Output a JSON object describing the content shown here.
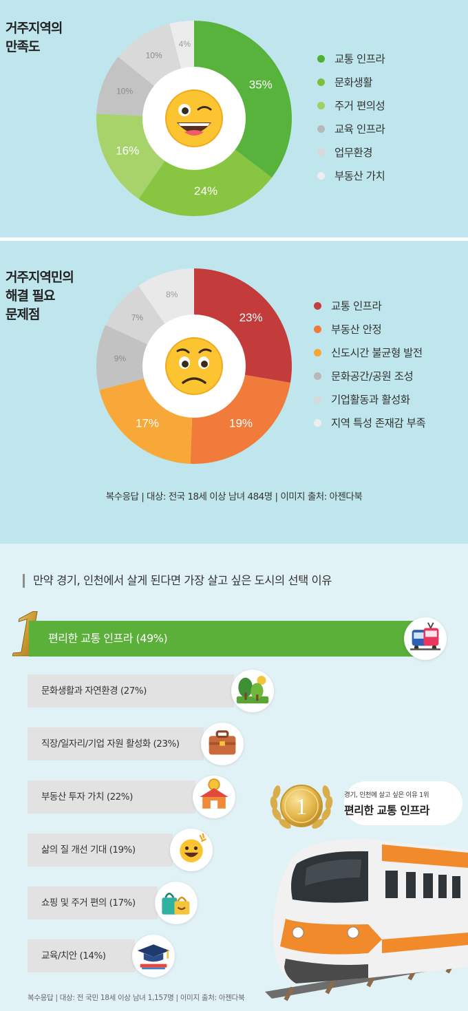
{
  "charts": [
    {
      "title": "거주지역의\n만족도",
      "chart_data": {
        "type": "pie",
        "title": "거주지역의 만족도",
        "categories": [
          "교통 인프라",
          "문화생활",
          "주거 편의성",
          "교육 인프라",
          "업무환경",
          "부동산 가치"
        ],
        "values": [
          35,
          24,
          16,
          10,
          10,
          4
        ],
        "value_labels": [
          "35%",
          "24%",
          "16%",
          "10%",
          "10%",
          "4%"
        ],
        "colors": [
          "#57b33c",
          "#88c540",
          "#a7d36a",
          "#c3c3c3",
          "#d9d9d9",
          "#ececec"
        ],
        "label_colors": [
          "#ffffff",
          "#ffffff",
          "#ffffff",
          "#8a8a8a",
          "#8a8a8a",
          "#9a9a9a"
        ],
        "legend_colors": [
          "#4db034",
          "#7cbf3a",
          "#9fd061",
          "#b8b8b8",
          "#d8d8d8",
          "#eeeeee"
        ],
        "legend_position": "right"
      },
      "emoji": "wink-grin-emoji"
    },
    {
      "title": "거주지역민의\n해결 필요\n문제점",
      "chart_data": {
        "type": "pie",
        "title": "거주지역민의 해결 필요 문제점",
        "categories": [
          "교통 인프라",
          "부동산 안정",
          "신도시간 불균형 발전",
          "문화공간/공원 조성",
          "기업활동과 활성화",
          "지역 특성 존재감 부족"
        ],
        "values": [
          23,
          19,
          17,
          9,
          7,
          8
        ],
        "value_labels": [
          "23%",
          "19%",
          "17%",
          "9%",
          "7%",
          "8%"
        ],
        "colors": [
          "#c43b3b",
          "#f07b3b",
          "#f7a838",
          "#c2c2c2",
          "#d6d6d6",
          "#e9e9e9"
        ],
        "label_colors": [
          "#ffffff",
          "#ffffff",
          "#ffffff",
          "#8a8a8a",
          "#8a8a8a",
          "#9a9a9a"
        ],
        "legend_colors": [
          "#c63d3d",
          "#ef7a3a",
          "#f6a737",
          "#b8b8b8",
          "#d8d8d8",
          "#eeeeee"
        ],
        "legend_position": "right"
      },
      "emoji": "worried-emoji"
    }
  ],
  "note1": "복수응답  |  대상: 전국 18세 이상 남녀 484명  |  이미지 출처: 아젠다북",
  "ranking": {
    "title": "만약 경기, 인천에서 살게 된다면 가장 살고 싶은 도시의 선택 이유",
    "chart_data": {
      "type": "bar",
      "orientation": "horizontal",
      "title": "만약 경기, 인천에서 살게 된다면 가장 살고 싶은 도시의 선택 이유",
      "categories": [
        "편리한 교통 인프라",
        "문화생활과 자연환경",
        "직장/일자리/기업 자원 활성화",
        "부동산 투자 가치",
        "삶의 질 개선 기대",
        "쇼핑 및 주거 편의",
        "교육/치안"
      ],
      "values": [
        49,
        27,
        23,
        22,
        19,
        17,
        14
      ],
      "labels": [
        "편리한 교통 인프라 (49%)",
        "문화생활과 자연환경 (27%)",
        "직장/일자리/기업 자원 활성화 (23%)",
        "부동산 투자 가치 (22%)",
        "삶의 질 개선 기대 (19%)",
        "쇼핑 및 주거 편의 (17%)",
        "교육/치안 (14%)"
      ],
      "icons": [
        "bus-tram-icon",
        "trees-icon",
        "briefcase-icon",
        "house-coin-icon",
        "smile-icon",
        "shopping-bag-icon",
        "graduation-cap-icon"
      ],
      "highlight_color": "#5ab039",
      "bar_color": "#e2e2e2"
    },
    "rank_number": "1",
    "badge": {
      "sub": "경기, 인천에 살고 싶은 이유 1위",
      "main": "편리한 교통 인프라",
      "medal_number": "1"
    },
    "footnote": "복수응답  |  대상: 전 국민 18세 이상 남녀 1,157명  |  이미지 출처: 아젠다북"
  }
}
